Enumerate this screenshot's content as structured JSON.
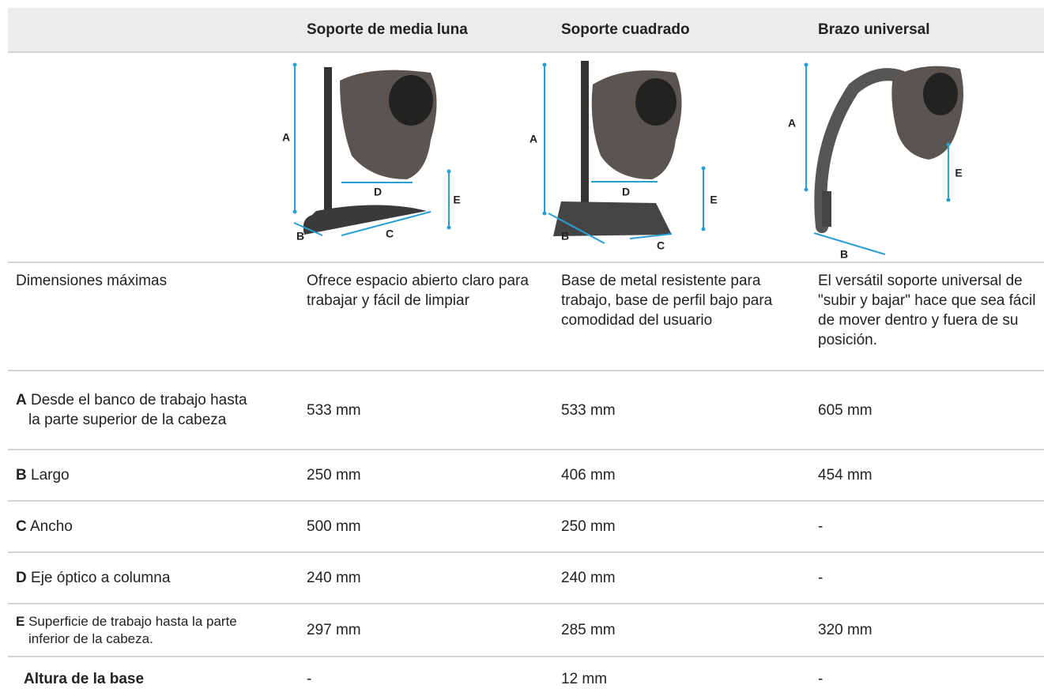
{
  "table": {
    "header": {
      "columns": [
        "Soporte de media luna",
        "Soporte cuadrado",
        "Brazo universal"
      ]
    },
    "images": [
      {
        "labels": [
          "A",
          "B",
          "C",
          "D",
          "E"
        ]
      },
      {
        "labels": [
          "A",
          "B",
          "C",
          "D",
          "E"
        ]
      },
      {
        "labels": [
          "A",
          "B",
          "E"
        ]
      }
    ],
    "description": {
      "label": "Dimensiones máximas",
      "values": [
        "Ofrece espacio abierto claro para trabajar y fácil de limpiar",
        "Base de metal resistente para trabajo, base de perfil bajo para comodidad del usuario",
        "El versátil soporte universal de \"subir y bajar\" hace que sea fácil de mover dentro y fuera de su posición."
      ]
    },
    "rows": [
      {
        "key": "A",
        "label": "Desde el banco de trabajo hasta la parte superior de la cabeza",
        "values": [
          "533 mm",
          "533 mm",
          "605 mm"
        ]
      },
      {
        "key": "B",
        "label": "Largo",
        "values": [
          "250 mm",
          "406 mm",
          "454 mm"
        ]
      },
      {
        "key": "C",
        "label": "Ancho",
        "values": [
          "500 mm",
          "250 mm",
          "-"
        ]
      },
      {
        "key": "D",
        "label": "Eje óptico a columna",
        "values": [
          "240 mm",
          "240 mm",
          "-"
        ]
      },
      {
        "key": "E",
        "label": "Superficie de trabajo hasta la parte inferior de la cabeza.",
        "values": [
          "297 mm",
          "285 mm",
          "320 mm"
        ]
      },
      {
        "label": "Altura de la base",
        "values": [
          "-",
          "12 mm",
          "-"
        ]
      }
    ]
  }
}
